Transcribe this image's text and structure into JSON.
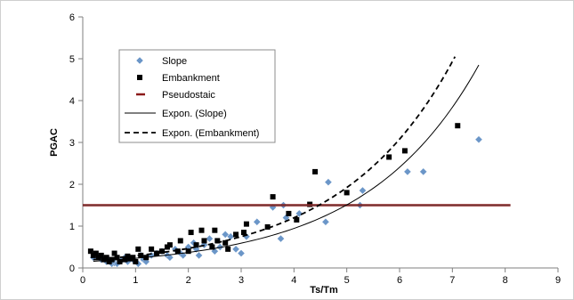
{
  "chart_data": {
    "type": "scatter",
    "xlabel": "Ts/Tm",
    "ylabel": "PGAC",
    "xlim": [
      0,
      9
    ],
    "ylim": [
      0,
      6
    ],
    "x_ticks": [
      "0",
      "1",
      "2",
      "3",
      "4",
      "5",
      "6",
      "7",
      "8",
      "9"
    ],
    "y_ticks": [
      "0",
      "1",
      "2",
      "3",
      "4",
      "5",
      "6"
    ],
    "grid": false,
    "legend_position": "top-left",
    "series": [
      {
        "name": "Slope",
        "kind": "scatter",
        "marker": "diamond",
        "color": "#6b96c8",
        "points": [
          [
            0.2,
            0.25
          ],
          [
            0.28,
            0.3
          ],
          [
            0.35,
            0.2
          ],
          [
            0.4,
            0.22
          ],
          [
            0.45,
            0.15
          ],
          [
            0.5,
            0.18
          ],
          [
            0.55,
            0.1
          ],
          [
            0.6,
            0.12
          ],
          [
            0.65,
            0.1
          ],
          [
            0.7,
            0.15
          ],
          [
            0.75,
            0.2
          ],
          [
            0.8,
            0.25
          ],
          [
            0.85,
            0.15
          ],
          [
            0.95,
            0.2
          ],
          [
            1.05,
            0.1
          ],
          [
            1.1,
            0.3
          ],
          [
            1.15,
            0.2
          ],
          [
            1.2,
            0.15
          ],
          [
            1.3,
            0.3
          ],
          [
            1.4,
            0.35
          ],
          [
            1.5,
            0.4
          ],
          [
            1.6,
            0.3
          ],
          [
            1.65,
            0.25
          ],
          [
            1.75,
            0.45
          ],
          [
            1.85,
            0.35
          ],
          [
            1.9,
            0.3
          ],
          [
            2.0,
            0.5
          ],
          [
            2.1,
            0.6
          ],
          [
            2.15,
            0.45
          ],
          [
            2.2,
            0.3
          ],
          [
            2.3,
            0.55
          ],
          [
            2.4,
            0.7
          ],
          [
            2.5,
            0.4
          ],
          [
            2.6,
            0.5
          ],
          [
            2.7,
            0.8
          ],
          [
            2.8,
            0.75
          ],
          [
            2.9,
            0.45
          ],
          [
            3.0,
            0.35
          ],
          [
            3.1,
            0.75
          ],
          [
            3.3,
            1.1
          ],
          [
            3.6,
            1.45
          ],
          [
            3.75,
            0.7
          ],
          [
            3.8,
            1.5
          ],
          [
            3.85,
            1.2
          ],
          [
            4.1,
            1.3
          ],
          [
            4.6,
            1.1
          ],
          [
            4.65,
            2.05
          ],
          [
            5.25,
            1.5
          ],
          [
            5.3,
            1.85
          ],
          [
            6.15,
            2.3
          ],
          [
            6.45,
            2.3
          ],
          [
            7.5,
            3.07
          ]
        ]
      },
      {
        "name": "Embankment",
        "kind": "scatter",
        "marker": "square",
        "color": "#000000",
        "points": [
          [
            0.15,
            0.4
          ],
          [
            0.2,
            0.3
          ],
          [
            0.25,
            0.35
          ],
          [
            0.3,
            0.25
          ],
          [
            0.35,
            0.3
          ],
          [
            0.4,
            0.2
          ],
          [
            0.45,
            0.25
          ],
          [
            0.5,
            0.15
          ],
          [
            0.55,
            0.2
          ],
          [
            0.6,
            0.35
          ],
          [
            0.65,
            0.25
          ],
          [
            0.7,
            0.15
          ],
          [
            0.8,
            0.2
          ],
          [
            0.85,
            0.28
          ],
          [
            0.9,
            0.22
          ],
          [
            0.95,
            0.25
          ],
          [
            1.0,
            0.15
          ],
          [
            1.05,
            0.45
          ],
          [
            1.1,
            0.3
          ],
          [
            1.2,
            0.25
          ],
          [
            1.3,
            0.45
          ],
          [
            1.4,
            0.35
          ],
          [
            1.5,
            0.4
          ],
          [
            1.6,
            0.5
          ],
          [
            1.65,
            0.55
          ],
          [
            1.8,
            0.4
          ],
          [
            1.85,
            0.65
          ],
          [
            2.0,
            0.4
          ],
          [
            2.05,
            0.85
          ],
          [
            2.15,
            0.55
          ],
          [
            2.25,
            0.9
          ],
          [
            2.3,
            0.65
          ],
          [
            2.45,
            0.5
          ],
          [
            2.5,
            0.9
          ],
          [
            2.55,
            0.65
          ],
          [
            2.7,
            0.6
          ],
          [
            2.75,
            0.45
          ],
          [
            2.9,
            0.8
          ],
          [
            3.05,
            0.85
          ],
          [
            3.1,
            1.05
          ],
          [
            3.5,
            0.98
          ],
          [
            3.6,
            1.7
          ],
          [
            3.9,
            1.3
          ],
          [
            4.05,
            1.15
          ],
          [
            4.3,
            1.52
          ],
          [
            4.4,
            2.3
          ],
          [
            5.0,
            1.8
          ],
          [
            5.8,
            2.65
          ],
          [
            6.1,
            2.8
          ],
          [
            7.1,
            3.4
          ]
        ]
      },
      {
        "name": "Pseudostaic",
        "kind": "hline",
        "y": 1.5,
        "x_range": [
          0,
          8.1
        ],
        "color": "#8b1a1a"
      },
      {
        "name": "Expon. (Slope)",
        "kind": "line",
        "style": "solid",
        "color": "#000000",
        "points": [
          [
            0.2,
            0.16
          ],
          [
            1,
            0.24
          ],
          [
            2,
            0.42
          ],
          [
            3,
            0.73
          ],
          [
            4,
            1.3
          ],
          [
            5,
            2.3
          ],
          [
            6,
            3.45
          ],
          [
            7,
            4.45
          ],
          [
            7.5,
            4.85
          ]
        ]
      },
      {
        "name": "Expon. (Embankment)",
        "kind": "line",
        "style": "dashed",
        "color": "#000000",
        "points": [
          [
            0.2,
            0.2
          ],
          [
            1,
            0.3
          ],
          [
            2,
            0.5
          ],
          [
            3,
            0.85
          ],
          [
            4,
            1.45
          ],
          [
            5,
            2.4
          ],
          [
            6,
            3.7
          ],
          [
            7.05,
            5.05
          ]
        ]
      }
    ]
  }
}
